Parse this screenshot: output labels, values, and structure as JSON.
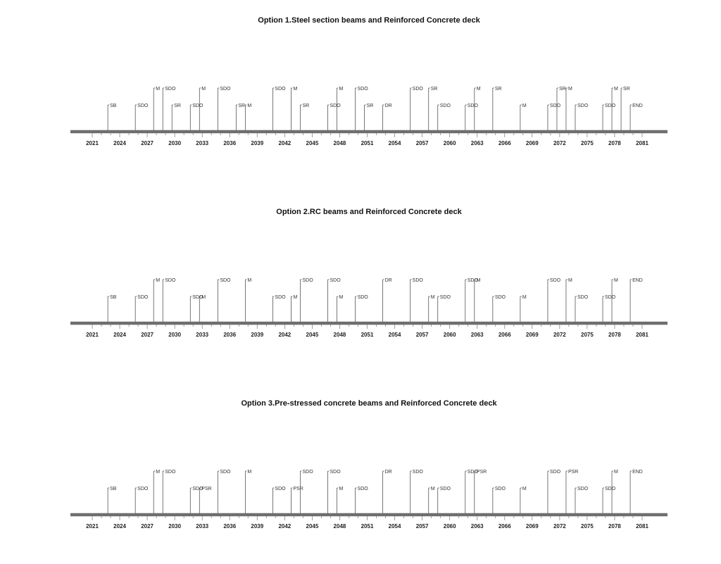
{
  "chart_data": [
    {
      "type": "timeline",
      "title": "Option 1.Steel section beams and Reinforced Concrete deck",
      "xlim": [
        2021,
        2081
      ],
      "ticks": [
        2021,
        2024,
        2027,
        2030,
        2033,
        2036,
        2039,
        2042,
        2045,
        2048,
        2051,
        2054,
        2057,
        2060,
        2063,
        2066,
        2069,
        2072,
        2075,
        2078,
        2081
      ],
      "events": [
        {
          "year": 2022.7,
          "label": "SB",
          "tier": "low"
        },
        {
          "year": 2025.7,
          "label": "SDO",
          "tier": "low"
        },
        {
          "year": 2027.7,
          "label": "M",
          "tier": "high"
        },
        {
          "year": 2028.7,
          "label": "SDO",
          "tier": "high"
        },
        {
          "year": 2029.7,
          "label": "SR",
          "tier": "low"
        },
        {
          "year": 2031.7,
          "label": "SDO",
          "tier": "low"
        },
        {
          "year": 2032.7,
          "label": "M",
          "tier": "high"
        },
        {
          "year": 2034.7,
          "label": "SDO",
          "tier": "high"
        },
        {
          "year": 2036.7,
          "label": "SR",
          "tier": "low"
        },
        {
          "year": 2037.7,
          "label": "M",
          "tier": "low"
        },
        {
          "year": 2040.7,
          "label": "SDO",
          "tier": "high"
        },
        {
          "year": 2042.7,
          "label": "M",
          "tier": "high"
        },
        {
          "year": 2043.7,
          "label": "SR",
          "tier": "low"
        },
        {
          "year": 2046.7,
          "label": "SDO",
          "tier": "low"
        },
        {
          "year": 2047.7,
          "label": "M",
          "tier": "high"
        },
        {
          "year": 2049.7,
          "label": "SDO",
          "tier": "high"
        },
        {
          "year": 2050.7,
          "label": "SR",
          "tier": "low"
        },
        {
          "year": 2052.7,
          "label": "DR",
          "tier": "low"
        },
        {
          "year": 2055.7,
          "label": "SDO",
          "tier": "high"
        },
        {
          "year": 2057.7,
          "label": "SR",
          "tier": "high"
        },
        {
          "year": 2058.7,
          "label": "SDO",
          "tier": "low"
        },
        {
          "year": 2061.7,
          "label": "SDO",
          "tier": "low"
        },
        {
          "year": 2062.7,
          "label": "M",
          "tier": "high"
        },
        {
          "year": 2064.7,
          "label": "SR",
          "tier": "high"
        },
        {
          "year": 2067.7,
          "label": "M",
          "tier": "low"
        },
        {
          "year": 2070.7,
          "label": "SDO",
          "tier": "low"
        },
        {
          "year": 2071.7,
          "label": "SR",
          "tier": "high"
        },
        {
          "year": 2072.7,
          "label": "M",
          "tier": "high"
        },
        {
          "year": 2073.7,
          "label": "SDO",
          "tier": "low"
        },
        {
          "year": 2076.7,
          "label": "SDO",
          "tier": "low"
        },
        {
          "year": 2077.7,
          "label": "M",
          "tier": "high"
        },
        {
          "year": 2078.7,
          "label": "SR",
          "tier": "high"
        },
        {
          "year": 2079.7,
          "label": "END",
          "tier": "low"
        }
      ]
    },
    {
      "type": "timeline",
      "title": "Option 2.RC beams and Reinforced Concrete deck",
      "xlim": [
        2021,
        2081
      ],
      "ticks": [
        2021,
        2024,
        2027,
        2030,
        2033,
        2036,
        2039,
        2042,
        2045,
        2048,
        2051,
        2054,
        2057,
        2060,
        2063,
        2066,
        2069,
        2072,
        2075,
        2078,
        2081
      ],
      "events": [
        {
          "year": 2022.7,
          "label": "SB",
          "tier": "low"
        },
        {
          "year": 2025.7,
          "label": "SDO",
          "tier": "low"
        },
        {
          "year": 2027.7,
          "label": "M",
          "tier": "high"
        },
        {
          "year": 2028.7,
          "label": "SDO",
          "tier": "high"
        },
        {
          "year": 2031.7,
          "label": "SDO",
          "tier": "low"
        },
        {
          "year": 2032.7,
          "label": "M",
          "tier": "low"
        },
        {
          "year": 2034.7,
          "label": "SDO",
          "tier": "high"
        },
        {
          "year": 2037.7,
          "label": "M",
          "tier": "high"
        },
        {
          "year": 2040.7,
          "label": "SDO",
          "tier": "low"
        },
        {
          "year": 2042.7,
          "label": "M",
          "tier": "low"
        },
        {
          "year": 2043.7,
          "label": "SDO",
          "tier": "high"
        },
        {
          "year": 2046.7,
          "label": "SDO",
          "tier": "high"
        },
        {
          "year": 2047.7,
          "label": "M",
          "tier": "low"
        },
        {
          "year": 2049.7,
          "label": "SDO",
          "tier": "low"
        },
        {
          "year": 2052.7,
          "label": "DR",
          "tier": "high"
        },
        {
          "year": 2055.7,
          "label": "SDO",
          "tier": "high"
        },
        {
          "year": 2057.7,
          "label": "M",
          "tier": "low"
        },
        {
          "year": 2058.7,
          "label": "SDO",
          "tier": "low"
        },
        {
          "year": 2061.7,
          "label": "SDO",
          "tier": "high"
        },
        {
          "year": 2062.7,
          "label": "M",
          "tier": "high"
        },
        {
          "year": 2064.7,
          "label": "SDO",
          "tier": "low"
        },
        {
          "year": 2067.7,
          "label": "M",
          "tier": "low"
        },
        {
          "year": 2070.7,
          "label": "SDO",
          "tier": "high"
        },
        {
          "year": 2072.7,
          "label": "M",
          "tier": "high"
        },
        {
          "year": 2073.7,
          "label": "SDO",
          "tier": "low"
        },
        {
          "year": 2076.7,
          "label": "SDO",
          "tier": "low"
        },
        {
          "year": 2077.7,
          "label": "M",
          "tier": "high"
        },
        {
          "year": 2079.7,
          "label": "END",
          "tier": "high"
        }
      ]
    },
    {
      "type": "timeline",
      "title": "Option 3.Pre-stressed concrete beams and Reinforced Concrete deck",
      "xlim": [
        2021,
        2081
      ],
      "ticks": [
        2021,
        2024,
        2027,
        2030,
        2033,
        2036,
        2039,
        2042,
        2045,
        2048,
        2051,
        2054,
        2057,
        2060,
        2063,
        2066,
        2069,
        2072,
        2075,
        2078,
        2081
      ],
      "events": [
        {
          "year": 2022.7,
          "label": "SB",
          "tier": "low"
        },
        {
          "year": 2025.7,
          "label": "SDO",
          "tier": "low"
        },
        {
          "year": 2027.7,
          "label": "M",
          "tier": "high"
        },
        {
          "year": 2028.7,
          "label": "SDO",
          "tier": "high"
        },
        {
          "year": 2031.7,
          "label": "SDO",
          "tier": "low"
        },
        {
          "year": 2032.7,
          "label": "PSR",
          "tier": "low"
        },
        {
          "year": 2034.7,
          "label": "SDO",
          "tier": "high"
        },
        {
          "year": 2037.7,
          "label": "M",
          "tier": "high"
        },
        {
          "year": 2040.7,
          "label": "SDO",
          "tier": "low"
        },
        {
          "year": 2042.7,
          "label": "PSR",
          "tier": "low"
        },
        {
          "year": 2043.7,
          "label": "SDO",
          "tier": "high"
        },
        {
          "year": 2046.7,
          "label": "SDO",
          "tier": "high"
        },
        {
          "year": 2047.7,
          "label": "M",
          "tier": "low"
        },
        {
          "year": 2049.7,
          "label": "SDO",
          "tier": "low"
        },
        {
          "year": 2052.7,
          "label": "DR",
          "tier": "high"
        },
        {
          "year": 2055.7,
          "label": "SDO",
          "tier": "high"
        },
        {
          "year": 2057.7,
          "label": "M",
          "tier": "low"
        },
        {
          "year": 2058.7,
          "label": "SDO",
          "tier": "low"
        },
        {
          "year": 2061.7,
          "label": "SDO",
          "tier": "high"
        },
        {
          "year": 2062.7,
          "label": "PSR",
          "tier": "high"
        },
        {
          "year": 2064.7,
          "label": "SDO",
          "tier": "low"
        },
        {
          "year": 2067.7,
          "label": "M",
          "tier": "low"
        },
        {
          "year": 2070.7,
          "label": "SDO",
          "tier": "high"
        },
        {
          "year": 2072.7,
          "label": "PSR",
          "tier": "high"
        },
        {
          "year": 2073.7,
          "label": "SDO",
          "tier": "low"
        },
        {
          "year": 2076.7,
          "label": "SDO",
          "tier": "low"
        },
        {
          "year": 2077.7,
          "label": "M",
          "tier": "high"
        },
        {
          "year": 2079.7,
          "label": "END",
          "tier": "high"
        }
      ]
    }
  ]
}
